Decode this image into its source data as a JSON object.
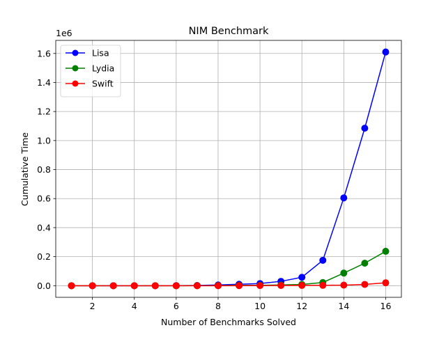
{
  "chart_data": {
    "type": "line",
    "title": "NIM Benchmark",
    "xlabel": "Number of Benchmarks Solved",
    "ylabel": "Cumulative Time",
    "y_offset_label": "1e6",
    "xlim": [
      0.25,
      16.75
    ],
    "ylim": [
      -80000,
      1690000
    ],
    "x_ticks": [
      2,
      4,
      6,
      8,
      10,
      12,
      14,
      16
    ],
    "x_tick_labels": [
      "2",
      "4",
      "6",
      "8",
      "10",
      "12",
      "14",
      "16"
    ],
    "y_ticks": [
      0,
      200000,
      400000,
      600000,
      800000,
      1000000,
      1200000,
      1400000,
      1600000
    ],
    "y_tick_labels": [
      "0.0",
      "0.2",
      "0.4",
      "0.6",
      "0.8",
      "1.0",
      "1.2",
      "1.4",
      "1.6"
    ],
    "grid": true,
    "legend_position": "top-left",
    "x": [
      1,
      2,
      3,
      4,
      5,
      6,
      7,
      8,
      9,
      10,
      11,
      12,
      13,
      14,
      15,
      16
    ],
    "series": [
      {
        "name": "Lisa",
        "color": "#0000ff",
        "values": [
          0,
          0,
          0,
          0,
          0,
          500,
          1500,
          5000,
          10000,
          15000,
          30000,
          58000,
          175000,
          605000,
          1085000,
          1610000
        ]
      },
      {
        "name": "Lydia",
        "color": "#008000",
        "values": [
          0,
          0,
          0,
          0,
          0,
          0,
          500,
          1000,
          2000,
          3000,
          5000,
          9000,
          22000,
          87000,
          155000,
          237000
        ]
      },
      {
        "name": "Swift",
        "color": "#ff0000",
        "values": [
          0,
          0,
          0,
          0,
          0,
          0,
          0,
          0,
          500,
          1000,
          1500,
          2000,
          2500,
          4000,
          9000,
          20000
        ]
      }
    ]
  }
}
